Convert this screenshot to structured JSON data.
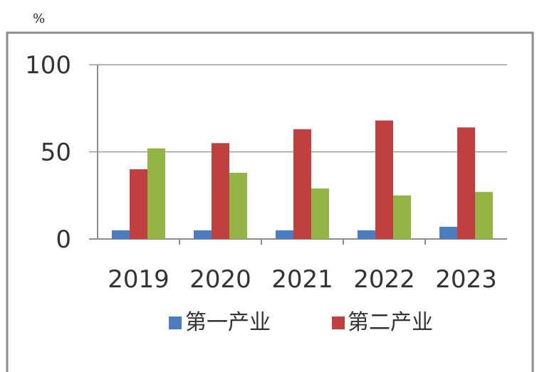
{
  "unit_label": "%",
  "chart_data": {
    "type": "bar",
    "categories": [
      "2019",
      "2020",
      "2021",
      "2022",
      "2023"
    ],
    "series": [
      {
        "name": "第一产业",
        "values": [
          5,
          5,
          5,
          5,
          7
        ],
        "color": "#4a7cbf"
      },
      {
        "name": "第二产业",
        "values": [
          40,
          55,
          63,
          68,
          64
        ],
        "color": "#c0403f"
      },
      {
        "values": [
          52,
          38,
          29,
          25,
          27
        ],
        "color": "#93b545"
      }
    ],
    "ylim": [
      0,
      100
    ],
    "yticks": [
      0,
      50,
      100
    ],
    "grid": true,
    "legend_position": "bottom"
  }
}
